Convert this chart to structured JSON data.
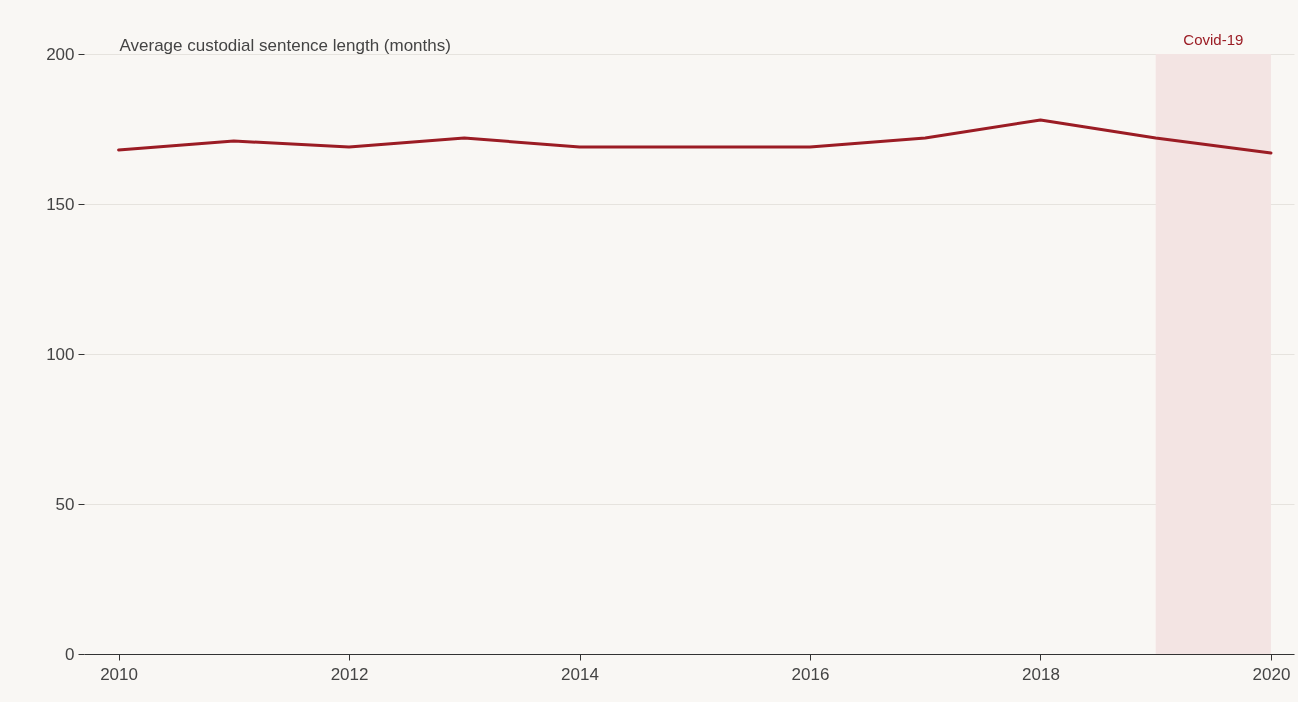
{
  "chart_data": {
    "type": "line",
    "ylabel": "Average custodial sentence length (months)",
    "x": [
      2010,
      2011,
      2012,
      2013,
      2014,
      2015,
      2016,
      2017,
      2018,
      2019,
      2020
    ],
    "series": [
      {
        "color": "#9b1c24",
        "values": [
          168,
          171,
          169,
          172,
          169,
          169,
          169,
          172,
          178,
          172,
          167
        ]
      }
    ],
    "xlim": [
      2009.7,
      2020.2
    ],
    "xticks": [
      2010,
      2012,
      2014,
      2016,
      2018,
      2020
    ],
    "ylim": [
      0,
      200
    ],
    "yticks": [
      0,
      50,
      100,
      150,
      200
    ],
    "grid": "y",
    "legend": false,
    "marker": "none",
    "line_style": "solid",
    "bands": [
      {
        "axis": "x",
        "from": 2019,
        "to": 2020,
        "label": "Covid-19",
        "color": "#f3e4e3"
      }
    ]
  }
}
